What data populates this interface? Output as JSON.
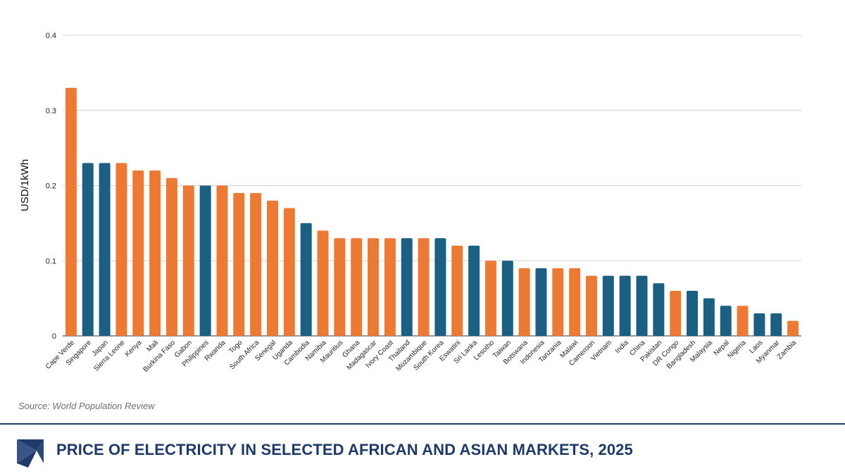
{
  "chart_data": {
    "type": "bar",
    "ylabel": "USD/1kWh",
    "xlabel": "",
    "ylim": [
      0,
      0.4
    ],
    "yticks": [
      "0",
      "0.1",
      "0.2",
      "0.3",
      "0.4"
    ],
    "grid": true,
    "colors": {
      "africa": "#ec7a35",
      "asia": "#1b5f82"
    },
    "categories": [
      "Cape Verde",
      "Singapore",
      "Japan",
      "Sierra Leone",
      "Kenya",
      "Mali",
      "Burkina Faso",
      "Gabon",
      "Philippines",
      "Rwanda",
      "Togo",
      "South Africa",
      "Senegal",
      "Uganda",
      "Cambodia",
      "Namibia",
      "Mauritius",
      "Ghana",
      "Madagascar",
      "Ivory Coast",
      "Thailand",
      "Mozambique",
      "South Korea",
      "Eswatini",
      "Sri Lanka",
      "Lesotho",
      "Taiwan",
      "Botswana",
      "Indonesia",
      "Tanzania",
      "Malawi",
      "Cameroon",
      "Vietnam",
      "India",
      "China",
      "Pakistan",
      "DR Congo",
      "Bangladesh",
      "Malaysia",
      "Nepal",
      "Nigeria",
      "Laos",
      "Myanmar",
      "Zambia"
    ],
    "values": [
      0.33,
      0.23,
      0.23,
      0.23,
      0.22,
      0.22,
      0.21,
      0.2,
      0.2,
      0.2,
      0.19,
      0.19,
      0.18,
      0.17,
      0.15,
      0.14,
      0.13,
      0.13,
      0.13,
      0.13,
      0.13,
      0.13,
      0.13,
      0.12,
      0.12,
      0.1,
      0.1,
      0.09,
      0.09,
      0.09,
      0.09,
      0.08,
      0.08,
      0.08,
      0.08,
      0.07,
      0.06,
      0.06,
      0.05,
      0.04,
      0.04,
      0.03,
      0.03,
      0.02
    ],
    "regions": [
      "africa",
      "asia",
      "asia",
      "africa",
      "africa",
      "africa",
      "africa",
      "africa",
      "asia",
      "africa",
      "africa",
      "africa",
      "africa",
      "africa",
      "asia",
      "africa",
      "africa",
      "africa",
      "africa",
      "africa",
      "asia",
      "africa",
      "asia",
      "africa",
      "asia",
      "africa",
      "asia",
      "africa",
      "asia",
      "africa",
      "africa",
      "africa",
      "asia",
      "asia",
      "asia",
      "asia",
      "africa",
      "asia",
      "asia",
      "asia",
      "africa",
      "asia",
      "asia",
      "africa"
    ]
  },
  "source": "Source: World Population Review",
  "title": "PRICE OF ELECTRICITY IN SELECTED AFRICAN AND ASIAN MARKETS, 2025"
}
